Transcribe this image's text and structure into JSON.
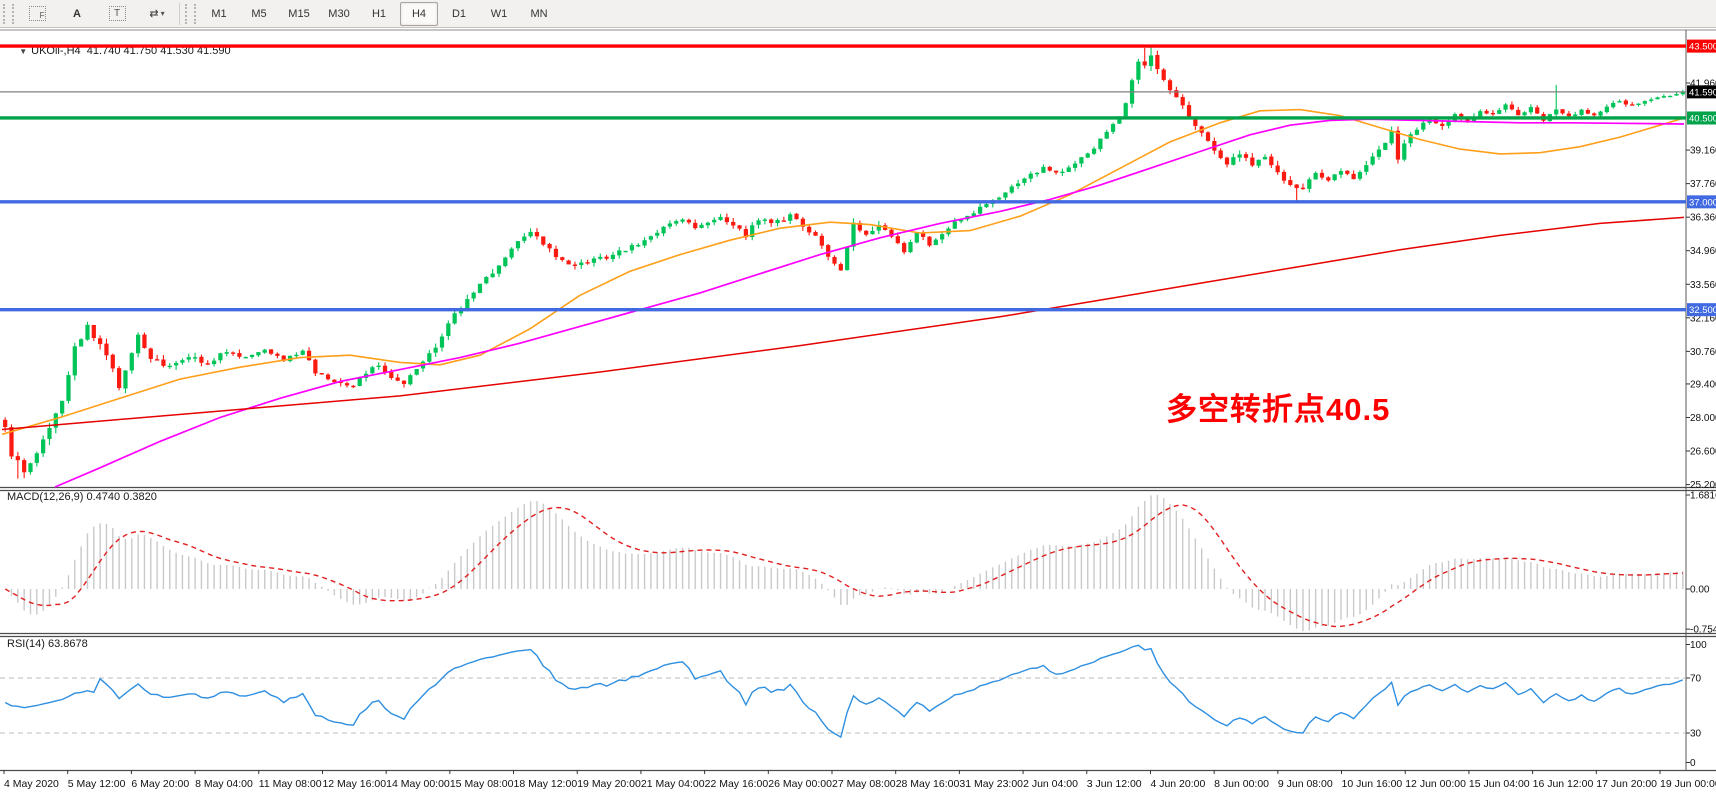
{
  "toolbar": {
    "icons": [
      {
        "name": "grid-f-icon",
        "label": "F"
      },
      {
        "name": "text-a-icon",
        "label": "A"
      },
      {
        "name": "text-box-icon",
        "label": "T"
      },
      {
        "name": "crosshair-arrows-icon",
        "label": "⇄",
        "caret": "▾"
      }
    ],
    "timeframes": [
      "M1",
      "M5",
      "M15",
      "M30",
      "H1",
      "H4",
      "D1",
      "W1",
      "MN"
    ],
    "active_timeframe": "H4"
  },
  "symbol_bar": {
    "collapse_arrow": "▼",
    "symbol": "UKOil-,H4",
    "open": "41.740",
    "high": "41.750",
    "low": "41.530",
    "close": "41.590"
  },
  "annotation": {
    "text": "多空转折点40.5",
    "color": "#FF0000"
  },
  "macd_panel": {
    "name": "MACD(12,26,9)",
    "value": "0.4740",
    "signal_value": "0.3820"
  },
  "rsi_panel": {
    "name": "RSI(14)",
    "value": "63.8678"
  },
  "chart_data": {
    "type": "candlestick",
    "symbol": "UKOil-",
    "timeframe": "H4",
    "current_bar": {
      "open": 41.74,
      "high": 41.75,
      "low": 41.53,
      "close": 41.59
    },
    "price_axis": {
      "ticks": [
        "41.960",
        "39.160",
        "37.760",
        "36.360",
        "34.960",
        "33.560",
        "32.160",
        "30.760",
        "29.400",
        "28.000",
        "26.600",
        "25.200"
      ],
      "tick_values": [
        41.96,
        39.16,
        37.76,
        36.36,
        34.96,
        33.56,
        32.16,
        30.76,
        29.4,
        28.0,
        26.6,
        25.2
      ],
      "visible_min": 25.2,
      "visible_max": 44.1
    },
    "levels": [
      {
        "price": 43.5,
        "badge": "43.500",
        "color": "#fe0000",
        "badge_bg": "#fe0000",
        "width": 3.4
      },
      {
        "price": 41.59,
        "badge": "41.590",
        "color": "#808080",
        "badge_bg": "#000000",
        "width": 1.2
      },
      {
        "price": 40.5,
        "badge": "40.500",
        "color": "#00a24a",
        "badge_bg": "#00a24a",
        "width": 3.4
      },
      {
        "price": 37.0,
        "badge": "37.000",
        "color": "#4169e1",
        "badge_bg": "#4169e1",
        "width": 3.4
      },
      {
        "price": 32.5,
        "badge": "32.500",
        "color": "#4169e1",
        "badge_bg": "#4169e1",
        "width": 3.4
      }
    ],
    "candles": {
      "count": 266,
      "up_color": "#00c457",
      "down_color": "#fb1a10",
      "close_anchors": [
        [
          0,
          27.6
        ],
        [
          1,
          26.5
        ],
        [
          3,
          25.8
        ],
        [
          5,
          26.4
        ],
        [
          7,
          27.6
        ],
        [
          9,
          28.8
        ],
        [
          11,
          30.9
        ],
        [
          13,
          31.8
        ],
        [
          14,
          31.3
        ],
        [
          16,
          30.6
        ],
        [
          18,
          29.3
        ],
        [
          19,
          29.9
        ],
        [
          21,
          31.4
        ],
        [
          23,
          30.5
        ],
        [
          26,
          30.1
        ],
        [
          29,
          30.6
        ],
        [
          32,
          30.2
        ],
        [
          35,
          30.8
        ],
        [
          38,
          30.5
        ],
        [
          41,
          30.9
        ],
        [
          44,
          30.4
        ],
        [
          47,
          30.8
        ],
        [
          49,
          29.9
        ],
        [
          52,
          29.5
        ],
        [
          55,
          29.3
        ],
        [
          57,
          29.9
        ],
        [
          59,
          30.2
        ],
        [
          61,
          29.7
        ],
        [
          63,
          29.4
        ],
        [
          65,
          30.0
        ],
        [
          67,
          30.6
        ],
        [
          69,
          31.4
        ],
        [
          71,
          32.3
        ],
        [
          73,
          32.9
        ],
        [
          75,
          33.6
        ],
        [
          77,
          34.1
        ],
        [
          79,
          34.7
        ],
        [
          81,
          35.3
        ],
        [
          83,
          35.7
        ],
        [
          85,
          35.3
        ],
        [
          87,
          34.7
        ],
        [
          89,
          34.3
        ],
        [
          92,
          34.5
        ],
        [
          95,
          34.7
        ],
        [
          98,
          35.0
        ],
        [
          101,
          35.4
        ],
        [
          104,
          35.9
        ],
        [
          107,
          36.3
        ],
        [
          109,
          35.9
        ],
        [
          111,
          36.2
        ],
        [
          113,
          36.4
        ],
        [
          115,
          36.0
        ],
        [
          117,
          35.6
        ],
        [
          119,
          36.3
        ],
        [
          121,
          36.1
        ],
        [
          124,
          36.4
        ],
        [
          126,
          36.0
        ],
        [
          128,
          35.6
        ],
        [
          130,
          34.8
        ],
        [
          132,
          34.1
        ],
        [
          134,
          36.1
        ],
        [
          136,
          35.7
        ],
        [
          138,
          36.0
        ],
        [
          140,
          35.6
        ],
        [
          142,
          34.9
        ],
        [
          144,
          35.7
        ],
        [
          146,
          35.2
        ],
        [
          148,
          35.6
        ],
        [
          150,
          36.1
        ],
        [
          152,
          36.4
        ],
        [
          155,
          36.9
        ],
        [
          158,
          37.4
        ],
        [
          161,
          38.0
        ],
        [
          164,
          38.4
        ],
        [
          167,
          38.2
        ],
        [
          170,
          38.8
        ],
        [
          172,
          39.3
        ],
        [
          174,
          40.0
        ],
        [
          176,
          40.5
        ],
        [
          177,
          41.1
        ],
        [
          178,
          42.1
        ],
        [
          179,
          42.9
        ],
        [
          180,
          42.6
        ],
        [
          181,
          43.2
        ],
        [
          182,
          42.5
        ],
        [
          183,
          42.0
        ],
        [
          185,
          41.3
        ],
        [
          187,
          40.6
        ],
        [
          189,
          39.9
        ],
        [
          191,
          39.2
        ],
        [
          193,
          38.6
        ],
        [
          195,
          39.0
        ],
        [
          197,
          38.5
        ],
        [
          199,
          38.9
        ],
        [
          201,
          38.2
        ],
        [
          203,
          37.7
        ],
        [
          205,
          37.6
        ],
        [
          207,
          38.2
        ],
        [
          209,
          37.8
        ],
        [
          211,
          38.3
        ],
        [
          213,
          38.0
        ],
        [
          215,
          38.6
        ],
        [
          217,
          39.1
        ],
        [
          219,
          39.9
        ],
        [
          220,
          38.8
        ],
        [
          221,
          39.4
        ],
        [
          223,
          40.1
        ],
        [
          225,
          40.4
        ],
        [
          227,
          40.2
        ],
        [
          229,
          40.6
        ],
        [
          231,
          40.3
        ],
        [
          233,
          40.8
        ],
        [
          235,
          40.6
        ],
        [
          237,
          41.0
        ],
        [
          239,
          40.6
        ],
        [
          241,
          40.9
        ],
        [
          243,
          40.4
        ],
        [
          245,
          40.9
        ],
        [
          247,
          40.6
        ],
        [
          249,
          40.8
        ],
        [
          251,
          40.6
        ],
        [
          253,
          41.0
        ],
        [
          255,
          41.2
        ],
        [
          257,
          41.0
        ],
        [
          259,
          41.2
        ],
        [
          261,
          41.35
        ],
        [
          263,
          41.45
        ],
        [
          265,
          41.59
        ]
      ],
      "volatility_anchors": [
        [
          0,
          0.55
        ],
        [
          12,
          0.5
        ],
        [
          22,
          0.45
        ],
        [
          40,
          0.3
        ],
        [
          60,
          0.3
        ],
        [
          72,
          0.4
        ],
        [
          85,
          0.4
        ],
        [
          100,
          0.3
        ],
        [
          130,
          0.4
        ],
        [
          150,
          0.35
        ],
        [
          165,
          0.3
        ],
        [
          178,
          0.45
        ],
        [
          188,
          0.4
        ],
        [
          205,
          0.4
        ],
        [
          218,
          0.4
        ],
        [
          235,
          0.28
        ],
        [
          250,
          0.22
        ],
        [
          265,
          0.18
        ]
      ],
      "forced_wicks": [
        {
          "i": 180,
          "high": 43.42
        },
        {
          "i": 181,
          "high": 43.45
        },
        {
          "i": 204,
          "low": 37.02
        },
        {
          "i": 245,
          "high": 41.88
        },
        {
          "i": 2,
          "low": 25.45
        }
      ]
    },
    "moving_averages": [
      {
        "name": "ma-fast",
        "color": "#ff9f1a",
        "width": 1.6,
        "points": [
          [
            2,
            27.3
          ],
          [
            60,
            28.0
          ],
          [
            120,
            28.8
          ],
          [
            180,
            29.6
          ],
          [
            240,
            30.1
          ],
          [
            300,
            30.5
          ],
          [
            350,
            30.6
          ],
          [
            400,
            30.3
          ],
          [
            440,
            30.2
          ],
          [
            480,
            30.6
          ],
          [
            530,
            31.7
          ],
          [
            580,
            33.1
          ],
          [
            630,
            34.1
          ],
          [
            680,
            34.8
          ],
          [
            730,
            35.4
          ],
          [
            780,
            35.9
          ],
          [
            830,
            36.15
          ],
          [
            870,
            36.05
          ],
          [
            920,
            35.7
          ],
          [
            970,
            35.8
          ],
          [
            1020,
            36.4
          ],
          [
            1070,
            37.3
          ],
          [
            1120,
            38.4
          ],
          [
            1170,
            39.5
          ],
          [
            1220,
            40.3
          ],
          [
            1260,
            40.8
          ],
          [
            1300,
            40.85
          ],
          [
            1340,
            40.6
          ],
          [
            1380,
            40.1
          ],
          [
            1420,
            39.6
          ],
          [
            1460,
            39.2
          ],
          [
            1500,
            39.0
          ],
          [
            1540,
            39.05
          ],
          [
            1580,
            39.3
          ],
          [
            1620,
            39.7
          ],
          [
            1660,
            40.2
          ],
          [
            1684,
            40.5
          ]
        ]
      },
      {
        "name": "ma-medium",
        "color": "#ff00ff",
        "width": 1.7,
        "points": [
          [
            55,
            25.1
          ],
          [
            100,
            25.9
          ],
          [
            160,
            27.0
          ],
          [
            220,
            28.0
          ],
          [
            280,
            28.8
          ],
          [
            340,
            29.5
          ],
          [
            400,
            30.0
          ],
          [
            460,
            30.5
          ],
          [
            520,
            31.1
          ],
          [
            580,
            31.8
          ],
          [
            640,
            32.5
          ],
          [
            700,
            33.2
          ],
          [
            760,
            34.0
          ],
          [
            820,
            34.8
          ],
          [
            880,
            35.5
          ],
          [
            940,
            36.1
          ],
          [
            1000,
            36.6
          ],
          [
            1050,
            37.1
          ],
          [
            1100,
            37.7
          ],
          [
            1150,
            38.4
          ],
          [
            1200,
            39.1
          ],
          [
            1250,
            39.8
          ],
          [
            1290,
            40.2
          ],
          [
            1330,
            40.4
          ],
          [
            1370,
            40.45
          ],
          [
            1420,
            40.4
          ],
          [
            1470,
            40.35
          ],
          [
            1520,
            40.3
          ],
          [
            1570,
            40.3
          ],
          [
            1620,
            40.28
          ],
          [
            1684,
            40.25
          ]
        ]
      },
      {
        "name": "ma-slow",
        "color": "#e60000",
        "width": 1.5,
        "points": [
          [
            2,
            27.5
          ],
          [
            200,
            28.2
          ],
          [
            400,
            28.9
          ],
          [
            600,
            29.9
          ],
          [
            800,
            31.0
          ],
          [
            1000,
            32.2
          ],
          [
            1100,
            32.9
          ],
          [
            1200,
            33.6
          ],
          [
            1300,
            34.3
          ],
          [
            1400,
            35.0
          ],
          [
            1500,
            35.6
          ],
          [
            1600,
            36.1
          ],
          [
            1684,
            36.35
          ]
        ]
      }
    ],
    "macd": {
      "params": [
        12,
        26,
        9
      ],
      "display_value": 0.474,
      "display_signal": 0.382,
      "axis_ticks": [
        "1.6816",
        "0.00",
        "-0.754"
      ],
      "scale_max": 1.6816,
      "scale_min": -0.7541,
      "hist_color": "#c9c9c9",
      "signal_color": "#e02020"
    },
    "rsi": {
      "period": 14,
      "display_value": 63.8678,
      "axis_ticks": [
        "100",
        "70",
        "30",
        "0"
      ],
      "overbought": 70,
      "oversold": 30,
      "line_color": "#2f8fe0",
      "level_color": "#bcbcbc"
    },
    "time_axis": {
      "labels": [
        "4 May 2020",
        "5 May 12:00",
        "6 May 20:00",
        "8 May 04:00",
        "11 May 08:00",
        "12 May 16:00",
        "14 May 00:00",
        "15 May 08:00",
        "18 May 12:00",
        "19 May 20:00",
        "21 May 04:00",
        "22 May 16:00",
        "26 May 00:00",
        "27 May 08:00",
        "28 May 16:00",
        "31 May 23:00",
        "2 Jun 04:00",
        "3 Jun 12:00",
        "4 Jun 20:00",
        "8 Jun 00:00",
        "9 Jun 08:00",
        "10 Jun 16:00",
        "12 Jun 00:00",
        "15 Jun 04:00",
        "16 Jun 12:00",
        "17 Jun 20:00",
        "19 Jun 00:00"
      ]
    }
  }
}
